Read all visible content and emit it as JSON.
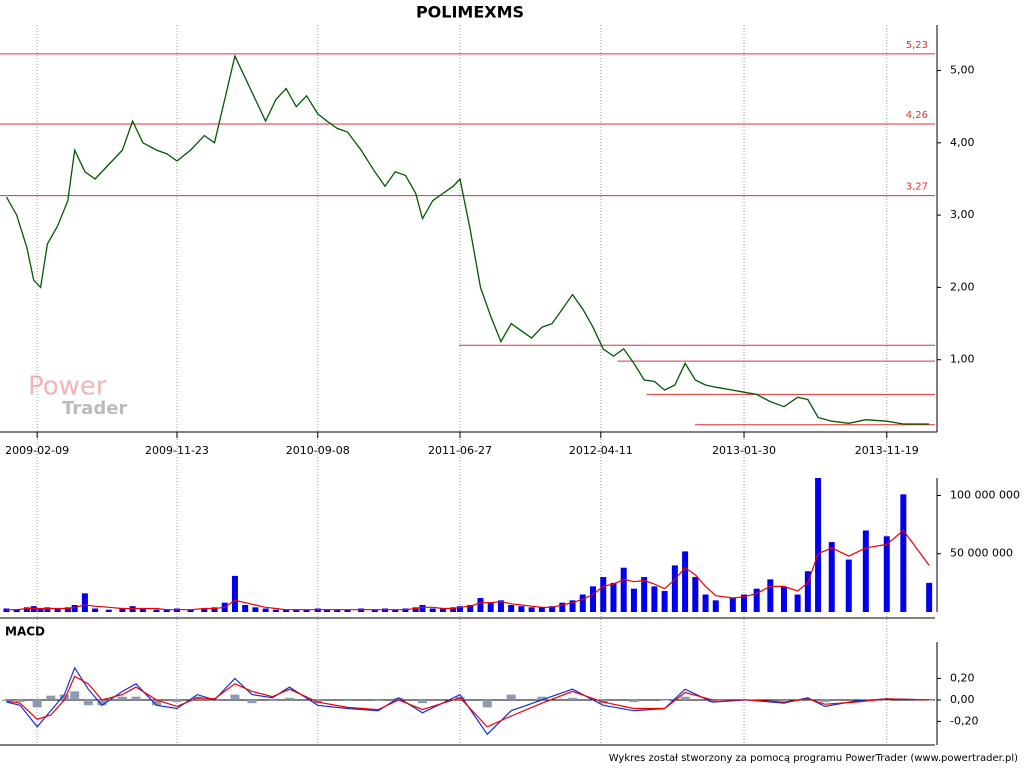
{
  "chart_data": [
    {
      "type": "line",
      "title": "POLIMEXMS",
      "x": [
        "2008-12-08",
        "2008-12-29",
        "2009-01-19",
        "2009-02-02",
        "2009-02-16",
        "2009-03-02",
        "2009-03-23",
        "2009-04-13",
        "2009-04-27",
        "2009-05-18",
        "2009-06-08",
        "2009-07-06",
        "2009-08-03",
        "2009-08-24",
        "2009-09-14",
        "2009-10-12",
        "2009-11-02",
        "2009-11-23",
        "2009-12-21",
        "2010-01-18",
        "2010-02-08",
        "2010-03-01",
        "2010-03-22",
        "2010-04-12",
        "2010-05-03",
        "2010-05-24",
        "2010-06-14",
        "2010-07-05",
        "2010-07-26",
        "2010-08-16",
        "2010-09-08",
        "2010-09-27",
        "2010-10-18",
        "2010-11-08",
        "2010-12-06",
        "2011-01-03",
        "2011-01-24",
        "2011-02-14",
        "2011-03-07",
        "2011-03-28",
        "2011-04-11",
        "2011-05-02",
        "2011-05-23",
        "2011-06-13",
        "2011-06-27",
        "2011-07-18",
        "2011-08-08",
        "2011-08-29",
        "2011-09-19",
        "2011-10-10",
        "2011-10-31",
        "2011-11-21",
        "2011-12-12",
        "2012-01-02",
        "2012-01-23",
        "2012-02-13",
        "2012-03-05",
        "2012-03-26",
        "2012-04-16",
        "2012-05-07",
        "2012-05-28",
        "2012-06-18",
        "2012-07-09",
        "2012-07-30",
        "2012-08-20",
        "2012-09-10",
        "2012-10-01",
        "2012-10-22",
        "2012-11-12",
        "2012-12-03",
        "2013-01-07",
        "2013-01-30",
        "2013-02-25",
        "2013-03-25",
        "2013-04-22",
        "2013-05-20",
        "2013-06-10",
        "2013-07-01",
        "2013-07-29",
        "2013-09-02",
        "2013-10-07",
        "2013-11-19",
        "2013-12-23",
        "2014-02-14"
      ],
      "series": [
        {
          "color": "#005a00",
          "values": [
            3.25,
            3.0,
            2.55,
            2.1,
            2.0,
            2.6,
            2.85,
            3.2,
            3.9,
            3.6,
            3.5,
            3.7,
            3.9,
            4.3,
            4.0,
            3.9,
            3.85,
            3.75,
            3.9,
            4.1,
            4.0,
            4.6,
            5.2,
            4.9,
            4.6,
            4.3,
            4.6,
            4.75,
            4.5,
            4.65,
            4.4,
            4.3,
            4.2,
            4.15,
            3.9,
            3.6,
            3.4,
            3.6,
            3.55,
            3.3,
            2.95,
            3.2,
            3.3,
            3.4,
            3.5,
            2.8,
            2.0,
            1.6,
            1.25,
            1.5,
            1.4,
            1.3,
            1.45,
            1.5,
            1.7,
            1.9,
            1.7,
            1.45,
            1.15,
            1.05,
            1.15,
            0.95,
            0.72,
            0.7,
            0.58,
            0.65,
            0.95,
            0.72,
            0.65,
            0.62,
            0.58,
            0.55,
            0.52,
            0.42,
            0.35,
            0.48,
            0.45,
            0.2,
            0.15,
            0.12,
            0.17,
            0.15,
            0.11,
            0.11
          ]
        }
      ],
      "xlim": [
        "2008-12-05",
        "2014-02-26"
      ],
      "xticks": [
        "2009-02-09",
        "2009-11-23",
        "2010-09-08",
        "2011-06-27",
        "2012-04-11",
        "2013-01-30",
        "2013-11-19"
      ],
      "ylim": [
        0,
        5.63
      ],
      "yticks": [
        {
          "value": 1,
          "label": "1,00"
        },
        {
          "value": 2,
          "label": "2,00"
        },
        {
          "value": 3,
          "label": "3,00"
        },
        {
          "value": 4,
          "label": "4,00"
        },
        {
          "value": 5,
          "label": "5,00"
        }
      ],
      "levels": [
        {
          "value": 5.23,
          "label": "5,23"
        },
        {
          "value": 4.26,
          "label": "4,26"
        },
        {
          "value": 3.27,
          "label": "3,27"
        },
        {
          "value": 1.2,
          "from": "2011-06-25"
        },
        {
          "value": 0.98,
          "from": "2012-05-15"
        },
        {
          "value": 0.52,
          "from": "2012-07-14"
        },
        {
          "value": 0.1,
          "from": "2012-10-21"
        }
      ],
      "level_color": "#e03030"
    },
    {
      "type": "bar",
      "x": [
        "2008-12-08",
        "2008-12-29",
        "2009-01-19",
        "2009-02-02",
        "2009-02-16",
        "2009-03-02",
        "2009-03-23",
        "2009-04-13",
        "2009-04-27",
        "2009-05-18",
        "2009-06-08",
        "2009-07-06",
        "2009-08-03",
        "2009-08-24",
        "2009-09-14",
        "2009-10-12",
        "2009-11-02",
        "2009-11-23",
        "2009-12-21",
        "2010-01-18",
        "2010-02-08",
        "2010-03-01",
        "2010-03-22",
        "2010-04-12",
        "2010-05-03",
        "2010-05-24",
        "2010-06-14",
        "2010-07-05",
        "2010-07-26",
        "2010-08-16",
        "2010-09-08",
        "2010-09-27",
        "2010-10-18",
        "2010-11-08",
        "2010-12-06",
        "2011-01-03",
        "2011-01-24",
        "2011-02-14",
        "2011-03-07",
        "2011-03-28",
        "2011-04-11",
        "2011-05-02",
        "2011-05-23",
        "2011-06-13",
        "2011-06-27",
        "2011-07-18",
        "2011-08-08",
        "2011-08-29",
        "2011-09-19",
        "2011-10-10",
        "2011-10-31",
        "2011-11-21",
        "2011-12-12",
        "2012-01-02",
        "2012-01-23",
        "2012-02-13",
        "2012-03-05",
        "2012-03-26",
        "2012-04-16",
        "2012-05-07",
        "2012-05-28",
        "2012-06-18",
        "2012-07-09",
        "2012-07-30",
        "2012-08-20",
        "2012-09-10",
        "2012-10-01",
        "2012-10-22",
        "2012-11-12",
        "2012-12-03",
        "2013-01-07",
        "2013-01-30",
        "2013-02-25",
        "2013-03-25",
        "2013-04-22",
        "2013-05-20",
        "2013-06-10",
        "2013-07-01",
        "2013-07-29",
        "2013-09-02",
        "2013-10-07",
        "2013-11-19",
        "2013-12-23",
        "2014-02-14"
      ],
      "series": [
        {
          "color": "#0000ee",
          "values": [
            3000000,
            2000000,
            4000000,
            5000000,
            3000000,
            4000000,
            3000000,
            4000000,
            6000000,
            16000000,
            3000000,
            2000000,
            3000000,
            5000000,
            3000000,
            2000000,
            2000000,
            3000000,
            2000000,
            3000000,
            4000000,
            8000000,
            31000000,
            6000000,
            4000000,
            3000000,
            2000000,
            2000000,
            2000000,
            2000000,
            3000000,
            2000000,
            2000000,
            2000000,
            3000000,
            2000000,
            3000000,
            2000000,
            3000000,
            4000000,
            6000000,
            3000000,
            3000000,
            4000000,
            5000000,
            6000000,
            12000000,
            8000000,
            10000000,
            6000000,
            5000000,
            4000000,
            4000000,
            5000000,
            8000000,
            10000000,
            15000000,
            22000000,
            30000000,
            25000000,
            38000000,
            20000000,
            30000000,
            22000000,
            18000000,
            40000000,
            52000000,
            30000000,
            15000000,
            10000000,
            12000000,
            15000000,
            20000000,
            28000000,
            22000000,
            15000000,
            35000000,
            115000000,
            60000000,
            45000000,
            70000000,
            65000000,
            101000000,
            25000000
          ]
        },
        {
          "type": "line",
          "color": "#ee0000",
          "values": [
            2000000,
            2000000,
            3000000,
            3000000,
            3000000,
            3000000,
            3000000,
            3000000,
            4000000,
            6000000,
            5000000,
            4000000,
            3000000,
            3000000,
            3000000,
            3000000,
            2000000,
            2000000,
            2000000,
            3000000,
            3000000,
            4000000,
            10000000,
            8000000,
            6000000,
            4000000,
            3000000,
            2000000,
            2000000,
            2000000,
            2000000,
            2000000,
            2000000,
            2000000,
            2000000,
            2000000,
            2000000,
            2000000,
            2000000,
            3000000,
            4000000,
            4000000,
            3000000,
            3000000,
            4000000,
            5000000,
            8000000,
            8000000,
            9000000,
            7000000,
            6000000,
            5000000,
            4000000,
            4000000,
            6000000,
            8000000,
            11000000,
            15000000,
            22000000,
            24000000,
            28000000,
            26000000,
            27000000,
            24000000,
            20000000,
            28000000,
            38000000,
            32000000,
            22000000,
            14000000,
            12000000,
            13000000,
            16000000,
            22000000,
            22000000,
            18000000,
            25000000,
            50000000,
            55000000,
            48000000,
            55000000,
            58000000,
            70000000,
            40000000
          ]
        }
      ],
      "xlim": [
        "2008-12-05",
        "2014-02-26"
      ],
      "ylim": [
        0,
        115000000
      ],
      "yticks": [
        {
          "value": 50000000,
          "label": "50 000 000"
        },
        {
          "value": 100000000,
          "label": "100 000 000"
        }
      ]
    },
    {
      "type": "line",
      "title": "MACD",
      "x": [
        "2008-12-08",
        "2009-01-05",
        "2009-02-09",
        "2009-03-09",
        "2009-04-06",
        "2009-04-27",
        "2009-05-25",
        "2009-06-22",
        "2009-08-03",
        "2009-08-31",
        "2009-10-12",
        "2009-11-23",
        "2010-01-04",
        "2010-02-08",
        "2010-03-22",
        "2010-04-26",
        "2010-06-07",
        "2010-07-12",
        "2010-09-08",
        "2010-11-08",
        "2011-01-10",
        "2011-02-21",
        "2011-04-11",
        "2011-06-27",
        "2011-08-22",
        "2011-10-10",
        "2011-12-12",
        "2012-02-13",
        "2012-04-16",
        "2012-06-18",
        "2012-08-20",
        "2012-10-01",
        "2012-11-26",
        "2013-02-04",
        "2013-04-22",
        "2013-06-10",
        "2013-07-15",
        "2013-09-16",
        "2013-11-19",
        "2014-02-14"
      ],
      "series": [
        {
          "type": "bar",
          "color": "#8b9cb0",
          "values": [
            -0.01,
            -0.02,
            -0.07,
            0.04,
            0.05,
            0.08,
            -0.05,
            -0.05,
            0.03,
            0.03,
            -0.05,
            -0.02,
            0.03,
            -0.01,
            0.05,
            -0.03,
            -0.01,
            0.02,
            -0.03,
            -0.01,
            -0.01,
            0.02,
            -0.03,
            0.03,
            -0.07,
            0.05,
            0.03,
            0.02,
            -0.03,
            -0.02,
            0.0,
            0.03,
            -0.02,
            0.0,
            -0.01,
            0.01,
            -0.02,
            0.01,
            0.0,
            0.0
          ]
        },
        {
          "color": "#1030e0",
          "values": [
            -0.02,
            -0.05,
            -0.25,
            -0.1,
            0.05,
            0.3,
            0.1,
            -0.05,
            0.08,
            0.15,
            -0.05,
            -0.08,
            0.05,
            0.0,
            0.2,
            0.05,
            0.02,
            0.12,
            -0.05,
            -0.08,
            -0.1,
            0.02,
            -0.12,
            0.05,
            -0.32,
            -0.1,
            0.0,
            0.1,
            -0.05,
            -0.1,
            -0.08,
            0.1,
            -0.02,
            0.0,
            -0.03,
            0.02,
            -0.06,
            -0.01,
            0.01,
            0.0
          ]
        },
        {
          "color": "#ee0000",
          "values": [
            -0.01,
            -0.03,
            -0.18,
            -0.14,
            0.0,
            0.22,
            0.15,
            0.0,
            0.05,
            0.12,
            0.0,
            -0.06,
            0.02,
            0.01,
            0.15,
            0.08,
            0.03,
            0.1,
            -0.02,
            -0.07,
            -0.09,
            0.0,
            -0.09,
            0.02,
            -0.25,
            -0.15,
            -0.03,
            0.08,
            -0.02,
            -0.08,
            -0.08,
            0.07,
            0.0,
            0.0,
            -0.02,
            0.01,
            -0.04,
            -0.02,
            0.01,
            0.0
          ]
        }
      ],
      "xlim": [
        "2008-12-05",
        "2014-02-26"
      ],
      "ylim": [
        -0.42,
        0.54
      ],
      "yticks": [
        {
          "value": -0.2,
          "label": "-0,20"
        },
        {
          "value": 0,
          "label": "0,00"
        },
        {
          "value": 0.2,
          "label": "0,20"
        }
      ],
      "zero_line": true
    }
  ],
  "watermark": [
    "Power",
    "Trader"
  ],
  "footer": "Wykres został stworzony za pomocą programu PowerTrader (www.powertrader.pl)"
}
